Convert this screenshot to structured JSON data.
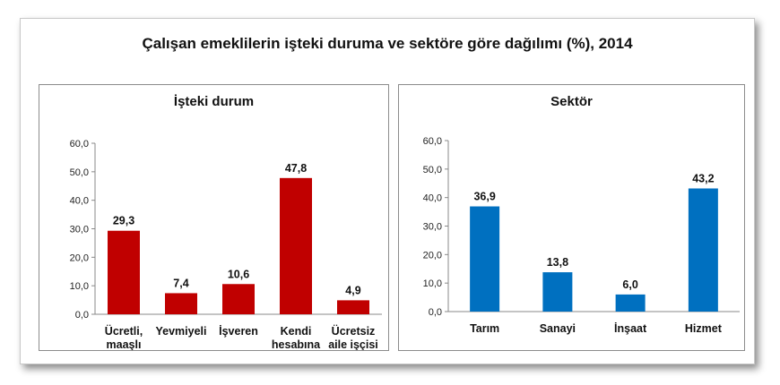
{
  "title": "Çalışan emeklilerin işteki duruma ve sektöre göre dağılımı (%), 2014",
  "colors": {
    "left_bars": "#c00000",
    "right_bars": "#0070c0"
  },
  "chart_data": [
    {
      "type": "bar",
      "title": "İşteki durum",
      "categories": [
        [
          "Ücretli,",
          "maaşlı"
        ],
        [
          "Yevmiyeli"
        ],
        [
          "İşveren"
        ],
        [
          "Kendi",
          "hesabına"
        ],
        [
          "Ücretsiz",
          "aile işçisi"
        ]
      ],
      "values": [
        29.3,
        7.4,
        10.6,
        47.8,
        4.9
      ],
      "value_labels": [
        "29,3",
        "7,4",
        "10,6",
        "47,8",
        "4,9"
      ],
      "ylim": [
        0,
        60
      ],
      "yticks": [
        "0,0",
        "10,0",
        "20,0",
        "30,0",
        "40,0",
        "50,0",
        "60,0"
      ],
      "color": "#c00000"
    },
    {
      "type": "bar",
      "title": "Sektör",
      "categories": [
        [
          "Tarım"
        ],
        [
          "Sanayi"
        ],
        [
          "İnşaat"
        ],
        [
          "Hizmet"
        ]
      ],
      "values": [
        36.9,
        13.8,
        6.0,
        43.2
      ],
      "value_labels": [
        "36,9",
        "13,8",
        "6,0",
        "43,2"
      ],
      "ylim": [
        0,
        60
      ],
      "yticks": [
        "0,0",
        "10,0",
        "20,0",
        "30,0",
        "40,0",
        "50,0",
        "60,0"
      ],
      "color": "#0070c0"
    }
  ]
}
